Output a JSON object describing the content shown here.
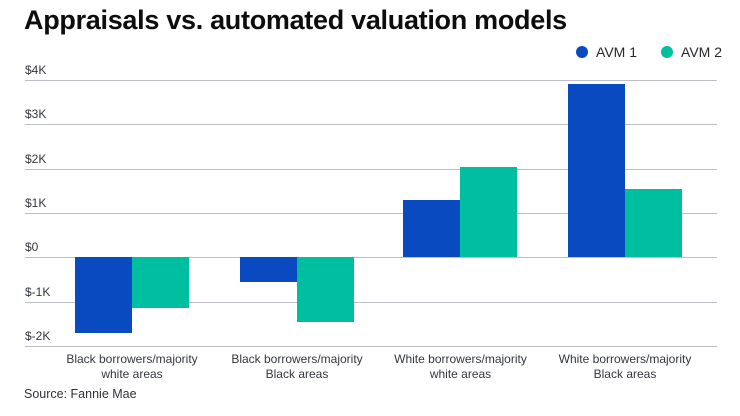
{
  "title": "Appraisals vs. automated valuation models",
  "source_note": "Source: Fannie Mae",
  "colors": {
    "avm1": "#0a4ac0",
    "avm2": "#00bfa0",
    "gridline": "#bcc0c6",
    "title_text": "#0d0d0d",
    "axis_text": "#33373d"
  },
  "legend": {
    "items": [
      {
        "label": "AVM 1",
        "color": "#0a4ac0"
      },
      {
        "label": "AVM 2",
        "color": "#00bfa0"
      }
    ],
    "position": "top-right"
  },
  "chart_data": {
    "type": "bar",
    "title": "Appraisals vs. automated valuation models",
    "categories": [
      "Black borrowers/majority white areas",
      "Black borrowers/majority Black areas",
      "White borrowers/majority white areas",
      "White borrowers/majority Black areas"
    ],
    "categories_wrapped": [
      [
        "Black borrowers/majority",
        "white areas"
      ],
      [
        "Black borrowers/majority",
        "Black areas"
      ],
      [
        "White borrowers/majority",
        "white areas"
      ],
      [
        "White borrowers/majority",
        "Black areas"
      ]
    ],
    "series": [
      {
        "name": "AVM 1",
        "color": "#0a4ac0",
        "values": [
          -1700,
          -550,
          1300,
          3900
        ]
      },
      {
        "name": "AVM 2",
        "color": "#00bfa0",
        "values": [
          -1150,
          -1450,
          2050,
          1550
        ]
      }
    ],
    "xlabel": "",
    "ylabel": "",
    "ylim": [
      -2000,
      4000
    ],
    "yticks": [
      {
        "value": 4000,
        "label": "$4K"
      },
      {
        "value": 3000,
        "label": "$3K"
      },
      {
        "value": 2000,
        "label": "$2K"
      },
      {
        "value": 1000,
        "label": "$1K"
      },
      {
        "value": 0,
        "label": "$0"
      },
      {
        "value": -1000,
        "label": "$-1K"
      },
      {
        "value": -2000,
        "label": "$-2K"
      }
    ],
    "grid": true,
    "legend_position": "top-right"
  }
}
